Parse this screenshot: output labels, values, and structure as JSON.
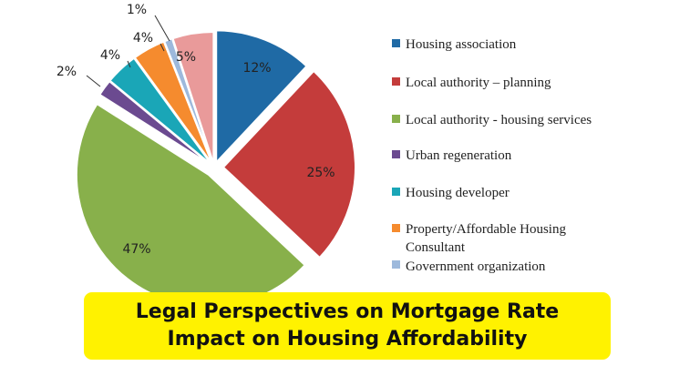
{
  "chart_data": {
    "type": "pie",
    "slices": [
      {
        "name": "Housing association",
        "value": 12,
        "label": "12%",
        "color": "#1f6aa5"
      },
      {
        "name": "Local authority – planning",
        "value": 25,
        "label": "25%",
        "color": "#c43c3b"
      },
      {
        "name": "Local authority - housing services",
        "value": 47,
        "label": "47%",
        "color": "#88b04b"
      },
      {
        "name": "Urban regeneration",
        "value": 2,
        "label": "2%",
        "color": "#6b4a90"
      },
      {
        "name": "Housing developer",
        "value": 4,
        "label": "4%",
        "color": "#1aa6b7"
      },
      {
        "name": "Property/Affordable Housing Consultant",
        "value": 4,
        "label": "4%",
        "color": "#f58b2e"
      },
      {
        "name": "Government organization",
        "value": 1,
        "label": "1%",
        "color": "#9db9dc"
      },
      {
        "name": "",
        "value": 5,
        "label": "5%",
        "color": "#e99a9a"
      }
    ],
    "legend_placement": "right"
  },
  "legend": {
    "items": [
      {
        "label": "Housing association",
        "color": "#1f6aa5"
      },
      {
        "label": "Local authority – planning",
        "color": "#c43c3b"
      },
      {
        "label": "Local authority - housing services",
        "color": "#88b04b"
      },
      {
        "label": "Urban regeneration",
        "color": "#6b4a90"
      },
      {
        "label": "Housing developer",
        "color": "#1aa6b7"
      },
      {
        "label": "Property/Affordable Housing",
        "label2": "Consultant",
        "color": "#f58b2e"
      },
      {
        "label": "Government organization",
        "color": "#9db9dc"
      }
    ]
  },
  "banner": {
    "title": "Legal Perspectives on Mortgage Rate Impact on Housing Affordability"
  }
}
